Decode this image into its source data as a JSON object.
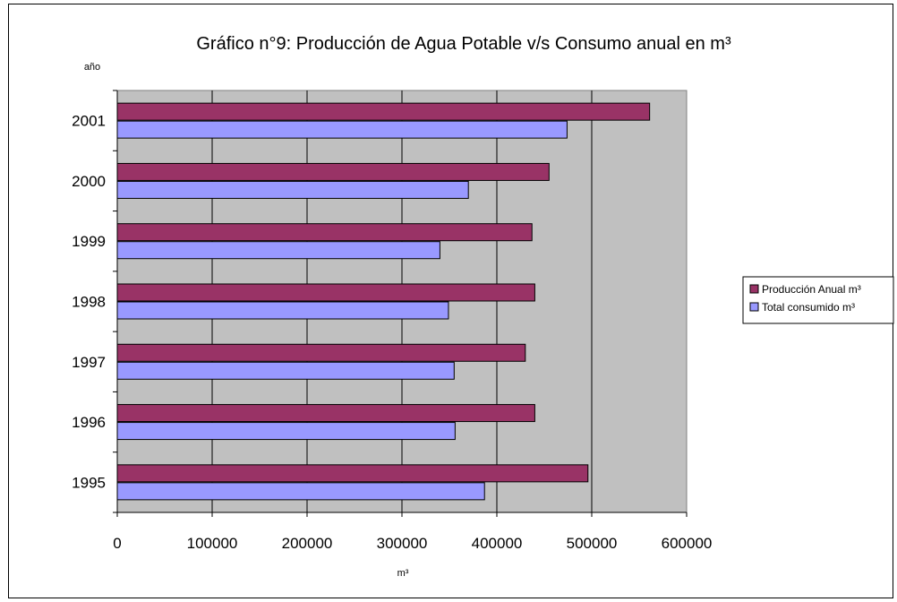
{
  "chart_data": {
    "type": "bar",
    "orientation": "horizontal",
    "title": "Gráfico n°9: Producción de Agua Potable v/s Consumo anual en m³",
    "xlabel": "m³",
    "ylabel": "año",
    "categories": [
      "1995",
      "1996",
      "1997",
      "1998",
      "1999",
      "2000",
      "2001"
    ],
    "series": [
      {
        "name": "Producción Anual m³",
        "color": "#993366",
        "values": [
          496000,
          440000,
          430000,
          440000,
          437000,
          455000,
          561000
        ]
      },
      {
        "name": "Total consumido  m³",
        "color": "#9999ff",
        "values": [
          387000,
          356000,
          355000,
          349000,
          340000,
          370000,
          474000
        ]
      }
    ],
    "xlim": [
      0,
      600000
    ],
    "xticks": [
      "0",
      "100000",
      "200000",
      "300000",
      "400000",
      "500000",
      "600000"
    ],
    "plot_background": "#c0c0c0",
    "grid": true,
    "legend_position": "right"
  }
}
